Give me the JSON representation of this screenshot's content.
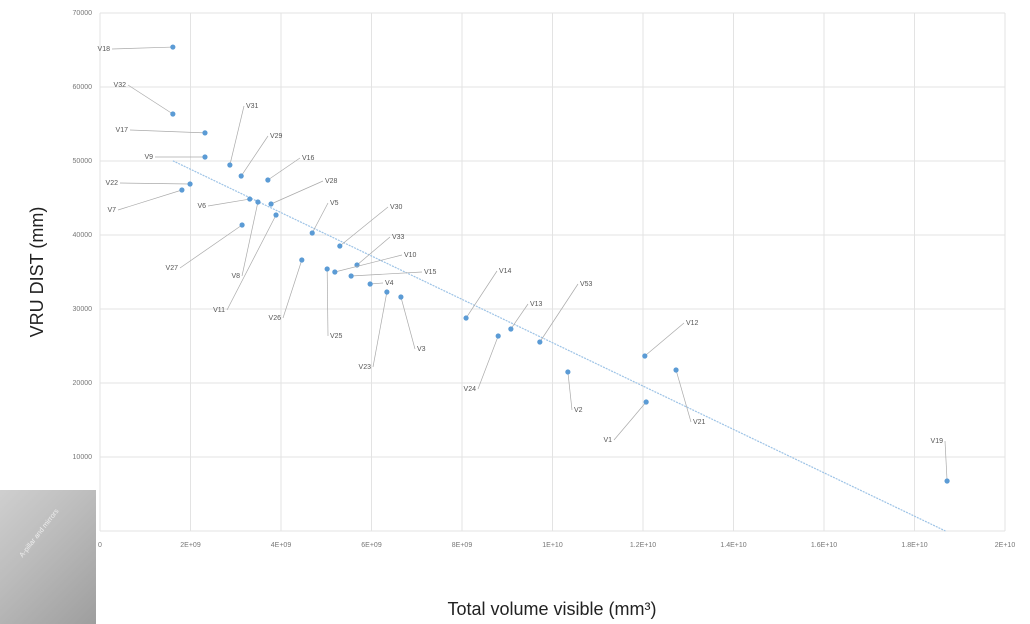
{
  "chart_data": {
    "type": "scatter",
    "xlabel": "Total volume visible (mm³)",
    "ylabel": "VRU DIST (mm)",
    "color": "#5b9bd5",
    "trendline": true,
    "grid": true,
    "point_labels": [
      "V18",
      "V32",
      "V17",
      "V9",
      "V31",
      "V29",
      "V16",
      "V22",
      "V7",
      "V28",
      "V6",
      "V8",
      "V11",
      "V27",
      "V5",
      "V30",
      "V26",
      "V25",
      "V33",
      "V10",
      "V15",
      "V4",
      "V23",
      "V3",
      "V14",
      "V13",
      "V24",
      "V53",
      "V12",
      "V21",
      "V2",
      "V1",
      "V19"
    ],
    "x": [
      1610000000.0,
      1610000000.0,
      2320000000.0,
      2320000000.0,
      2870000000.0,
      3120000000.0,
      3710000000.0,
      1990000000.0,
      1810000000.0,
      3780000000.0,
      3310000000.0,
      3490000000.0,
      3890000000.0,
      3140000000.0,
      4690000000.0,
      5300000000.0,
      4460000000.0,
      5020000000.0,
      5680000000.0,
      5190000000.0,
      5550000000.0,
      5970000000.0,
      6340000000.0,
      6650000000.0,
      8090000000.0,
      9080000000.0,
      8800000000.0,
      9720000000.0,
      12040000000.0,
      12730000000.0,
      10340000000.0,
      12070000000.0,
      18720000000.0
    ],
    "y": [
      65400,
      56350,
      53800,
      50540,
      49460,
      47970,
      47430,
      46890,
      46080,
      44190,
      44860,
      44460,
      42700,
      41350,
      40270,
      38510,
      36620,
      35410,
      35950,
      35000,
      34460,
      33380,
      32300,
      31620,
      28780,
      27300,
      26350,
      25540,
      23650,
      21760,
      21490,
      17430,
      6760
    ],
    "xlim": [
      0,
      20000000000.0
    ],
    "xticks": [
      0,
      {
        "value": 2000000000.0,
        "label": "2E+09"
      },
      {
        "value": 4000000000.0,
        "label": "4E+09"
      },
      {
        "value": 6000000000.0,
        "label": "6E+09"
      },
      {
        "value": 8000000000.0,
        "label": "8E+09"
      },
      {
        "value": 10000000000.0,
        "label": "1E+10"
      },
      {
        "value": 12000000000.0,
        "label": "1.2E+10"
      },
      {
        "value": 14000000000.0,
        "label": "1.4E+10"
      },
      {
        "value": 16000000000.0,
        "label": "1.6E+10"
      },
      {
        "value": 18000000000.0,
        "label": "1.8E+10"
      },
      {
        "value": 20000000000.0,
        "label": "2E+10"
      }
    ],
    "ylim": [
      0,
      70000
    ],
    "yticks": [
      0,
      10000,
      20000,
      30000,
      40000,
      50000,
      60000,
      70000
    ]
  },
  "inset_label": "A-pillar and mirrors"
}
